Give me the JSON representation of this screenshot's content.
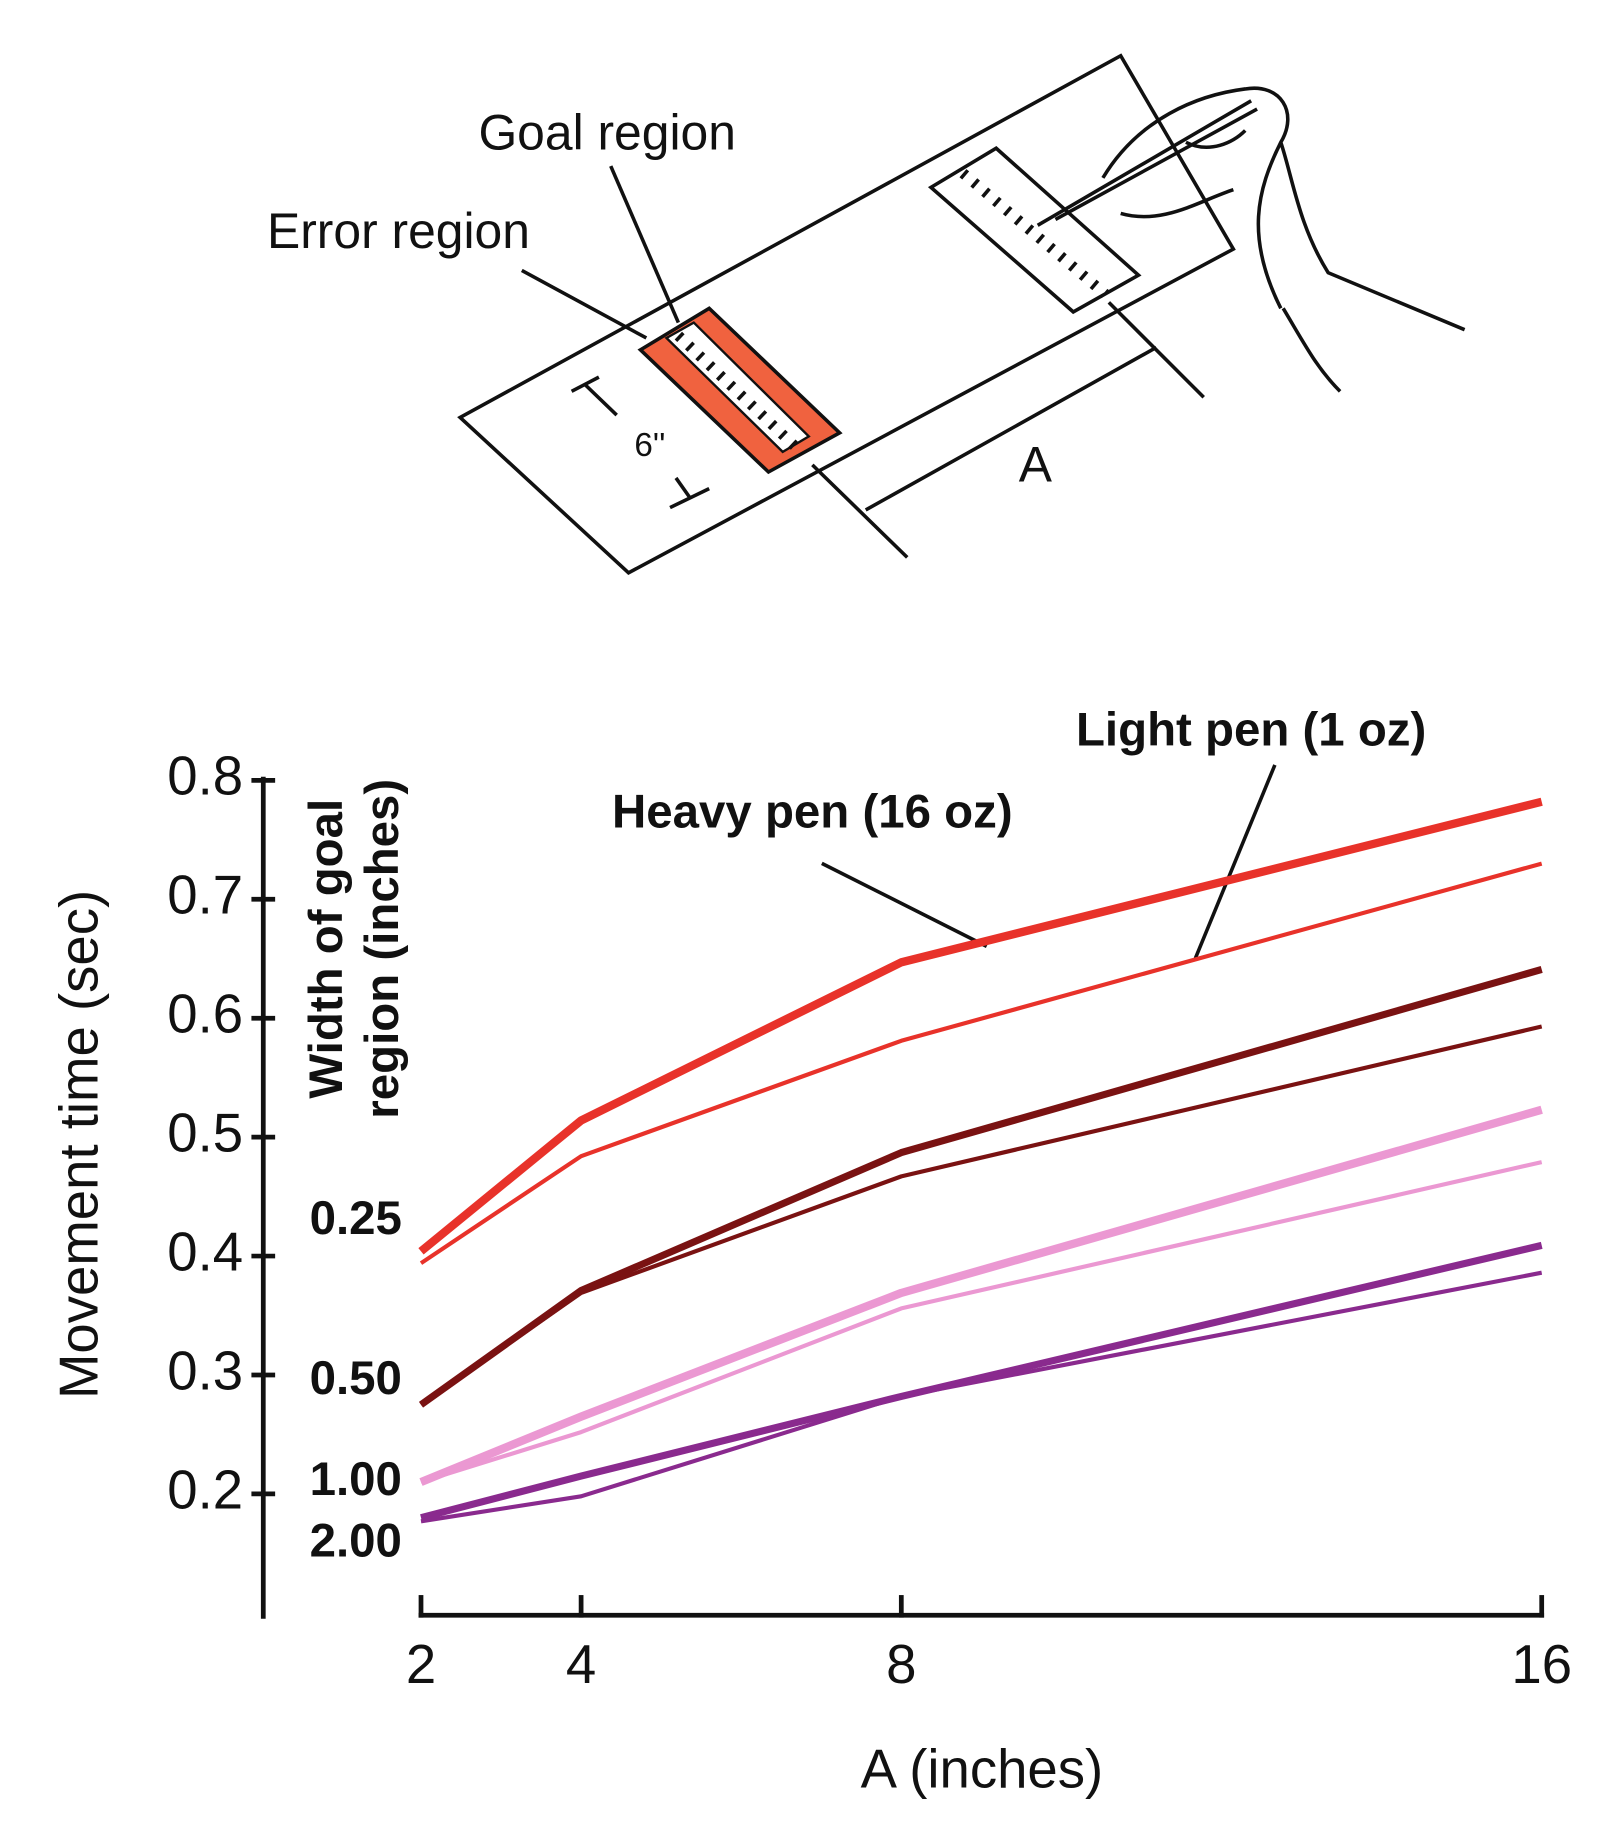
{
  "diagram": {
    "goal_label": "Goal region",
    "error_label": "Error region",
    "width_label": "6''",
    "distance_label": "A"
  },
  "chart_data": {
    "type": "line",
    "ylabel": "Movement time (sec)",
    "y2label": [
      "Width of goal",
      "region (inches)"
    ],
    "xlabel": "A (inches)",
    "x": [
      2,
      4,
      8,
      16
    ],
    "xlim": [
      2,
      16
    ],
    "xticks": [
      2,
      4,
      8,
      16
    ],
    "ylim": [
      0.1,
      0.8
    ],
    "yticks": [
      0.2,
      0.3,
      0.4,
      0.5,
      0.6,
      0.7,
      0.8
    ],
    "width_labels": [
      "0.25",
      "0.50",
      "1.00",
      "2.00"
    ],
    "annotations": [
      "Heavy pen (16 oz)",
      "Light pen (1 oz)"
    ],
    "series": [
      {
        "color": "#e8322a",
        "linewidth": 7,
        "values": [
          0.404,
          0.514,
          0.647,
          0.782
        ]
      },
      {
        "color": "#e8322a",
        "linewidth": 3.5,
        "values": [
          0.394,
          0.484,
          0.581,
          0.73
        ]
      },
      {
        "color": "#7a1212",
        "linewidth": 6,
        "values": [
          0.275,
          0.371,
          0.487,
          0.641
        ]
      },
      {
        "color": "#7a1212",
        "linewidth": 3.5,
        "values": [
          0.275,
          0.369,
          0.467,
          0.593
        ]
      },
      {
        "color": "#eb98d2",
        "linewidth": 7,
        "values": [
          0.21,
          0.265,
          0.369,
          0.523
        ]
      },
      {
        "color": "#eb98d2",
        "linewidth": 3.5,
        "values": [
          0.21,
          0.252,
          0.356,
          0.479
        ]
      },
      {
        "color": "#8a2a8e",
        "linewidth": 6,
        "values": [
          0.18,
          0.215,
          0.282,
          0.409
        ]
      },
      {
        "color": "#8a2a8e",
        "linewidth": 3.5,
        "values": [
          0.177,
          0.198,
          0.282,
          0.386
        ]
      }
    ]
  }
}
